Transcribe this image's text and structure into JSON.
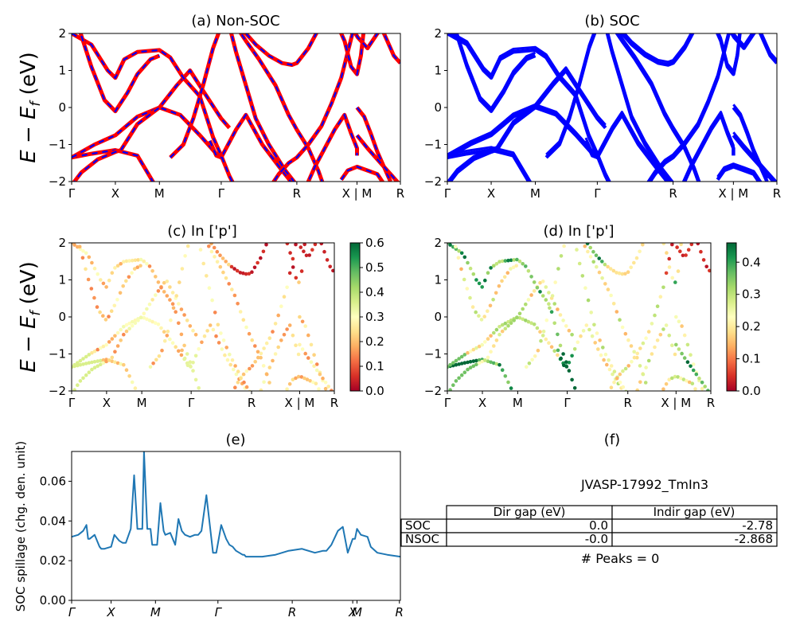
{
  "figure": {
    "row_ylabel": "E − Ef (eV)",
    "row_ylabel_main": "E − E",
    "row_ylabel_sub": "f",
    "row_ylabel_unit": " (eV)"
  },
  "chart_data": [
    {
      "id": "a",
      "type": "line",
      "title": "(a) Non-SOC",
      "ylim": [
        -2,
        2
      ],
      "yticks": [
        "2",
        "1",
        "0",
        "−1",
        "−2"
      ],
      "kpoints": [
        "Γ",
        "X",
        "M",
        "Γ",
        "R",
        "X | M",
        "R"
      ],
      "kpos": [
        0,
        0.133,
        0.267,
        0.455,
        0.685,
        0.868,
        1.0
      ],
      "series_colors": [
        "#ff0000",
        "#0000ff"
      ],
      "bands": [
        [
          [
            0,
            -1.35
          ],
          [
            0.06,
            -1.25
          ],
          [
            0.133,
            -1.15
          ],
          [
            0.2,
            -1.3
          ],
          [
            0.267,
            -2.3
          ]
        ],
        [
          [
            0,
            -1.35
          ],
          [
            0.07,
            -1.0
          ],
          [
            0.133,
            -0.75
          ],
          [
            0.2,
            -0.25
          ],
          [
            0.267,
            0.0
          ],
          [
            0.33,
            -0.2
          ],
          [
            0.39,
            -0.75
          ],
          [
            0.44,
            -1.25
          ],
          [
            0.455,
            -1.35
          ],
          [
            0.5,
            -0.6
          ],
          [
            0.53,
            -0.2
          ],
          [
            0.58,
            -1.0
          ],
          [
            0.64,
            -1.7
          ],
          [
            0.685,
            -2.2
          ]
        ],
        [
          [
            0.0,
            -2.1
          ],
          [
            0.03,
            -1.75
          ],
          [
            0.08,
            -1.4
          ],
          [
            0.133,
            -1.2
          ],
          [
            0.15,
            -1.15
          ],
          [
            0.2,
            -0.45
          ],
          [
            0.267,
            0.0
          ],
          [
            0.32,
            0.6
          ],
          [
            0.36,
            1.0
          ],
          [
            0.4,
            0.45
          ],
          [
            0.455,
            -0.3
          ],
          [
            0.48,
            -0.55
          ]
        ],
        [
          [
            0,
            2.0
          ],
          [
            0.06,
            1.7
          ],
          [
            0.11,
            1.0
          ],
          [
            0.133,
            0.8
          ],
          [
            0.16,
            1.3
          ],
          [
            0.2,
            1.5
          ],
          [
            0.267,
            1.55
          ],
          [
            0.3,
            1.35
          ],
          [
            0.34,
            0.8
          ],
          [
            0.39,
            0.3
          ],
          [
            0.43,
            -0.8
          ],
          [
            0.455,
            -1.3
          ],
          [
            0.48,
            -1.85
          ],
          [
            0.5,
            -2.2
          ]
        ],
        [
          [
            0.02,
            2.2
          ],
          [
            0.06,
            1.1
          ],
          [
            0.1,
            0.2
          ],
          [
            0.133,
            -0.1
          ],
          [
            0.17,
            0.4
          ],
          [
            0.2,
            0.9
          ],
          [
            0.24,
            1.3
          ],
          [
            0.267,
            1.4
          ]
        ],
        [
          [
            0.3,
            -1.35
          ],
          [
            0.34,
            -1.0
          ],
          [
            0.37,
            -0.3
          ],
          [
            0.4,
            0.6
          ],
          [
            0.43,
            1.6
          ],
          [
            0.455,
            2.2
          ]
        ],
        [
          [
            0.42,
            -0.9
          ],
          [
            0.44,
            -1.3
          ],
          [
            0.455,
            -1.35
          ]
        ],
        [
          [
            0.48,
            2.2
          ],
          [
            0.5,
            1.5
          ],
          [
            0.53,
            0.6
          ],
          [
            0.56,
            -0.3
          ],
          [
            0.6,
            -1.0
          ],
          [
            0.65,
            -1.7
          ],
          [
            0.685,
            -2.1
          ]
        ],
        [
          [
            0.5,
            2.2
          ],
          [
            0.53,
            1.8
          ],
          [
            0.57,
            1.3
          ],
          [
            0.62,
            0.6
          ],
          [
            0.66,
            -0.2
          ],
          [
            0.685,
            -0.6
          ],
          [
            0.72,
            -1.1
          ],
          [
            0.75,
            -1.7
          ],
          [
            0.77,
            -2.2
          ]
        ],
        [
          [
            0.51,
            2.2
          ],
          [
            0.53,
            2.0
          ],
          [
            0.56,
            1.7
          ],
          [
            0.6,
            1.4
          ],
          [
            0.64,
            1.2
          ],
          [
            0.67,
            1.15
          ],
          [
            0.685,
            1.2
          ],
          [
            0.72,
            1.6
          ],
          [
            0.75,
            2.1
          ]
        ],
        [
          [
            0.6,
            -2.2
          ],
          [
            0.63,
            -1.8
          ],
          [
            0.66,
            -1.5
          ],
          [
            0.685,
            -1.35
          ],
          [
            0.72,
            -1.0
          ],
          [
            0.76,
            -0.5
          ],
          [
            0.79,
            0.1
          ],
          [
            0.82,
            0.8
          ],
          [
            0.84,
            1.5
          ],
          [
            0.86,
            2.2
          ]
        ],
        [
          [
            0.71,
            -2.2
          ],
          [
            0.74,
            -1.6
          ],
          [
            0.77,
            -1.1
          ],
          [
            0.8,
            -0.6
          ],
          [
            0.83,
            -0.2
          ],
          [
            0.85,
            -0.7
          ],
          [
            0.868,
            -1.1
          ],
          [
            0.868,
            -1.3
          ]
        ],
        [
          [
            0.81,
            2.2
          ],
          [
            0.83,
            1.8
          ],
          [
            0.85,
            1.1
          ],
          [
            0.868,
            0.9
          ],
          [
            0.88,
            1.4
          ],
          [
            0.89,
            2.2
          ]
        ],
        [
          [
            0.868,
            0.0
          ],
          [
            0.89,
            -0.25
          ],
          [
            0.91,
            -0.7
          ],
          [
            0.93,
            -1.2
          ],
          [
            0.95,
            -1.6
          ],
          [
            0.97,
            -2.0
          ]
        ],
        [
          [
            0.82,
            -1.95
          ],
          [
            0.84,
            -1.7
          ],
          [
            0.868,
            -1.6
          ],
          [
            0.9,
            -1.7
          ],
          [
            0.93,
            -1.8
          ],
          [
            0.96,
            -2.2
          ]
        ],
        [
          [
            0.868,
            -0.75
          ],
          [
            0.9,
            -1.1
          ],
          [
            0.94,
            -1.5
          ],
          [
            0.97,
            -1.8
          ],
          [
            1.0,
            -2.1
          ]
        ],
        [
          [
            0.85,
            2.2
          ],
          [
            0.87,
            1.9
          ],
          [
            0.9,
            1.6
          ],
          [
            0.93,
            2.0
          ],
          [
            0.95,
            2.2
          ]
        ],
        [
          [
            0.94,
            2.2
          ],
          [
            0.96,
            1.8
          ],
          [
            0.98,
            1.4
          ],
          [
            1.0,
            1.2
          ]
        ]
      ]
    },
    {
      "id": "b",
      "type": "line",
      "title": "(b) SOC",
      "ylim": [
        -2,
        2
      ],
      "yticks": [
        "2",
        "1",
        "0",
        "−1",
        "−2"
      ],
      "kpoints": [
        "Γ",
        "X",
        "M",
        "Γ",
        "R",
        "X | M",
        "R"
      ],
      "kpos": [
        0,
        0.133,
        0.267,
        0.455,
        0.685,
        0.868,
        1.0
      ],
      "series_colors": [
        "#0000ff"
      ]
    },
    {
      "id": "c",
      "type": "scatter",
      "title": "(c)  In ['p']",
      "ylim": [
        -2,
        2
      ],
      "yticks": [
        "2",
        "1",
        "0",
        "−1",
        "−2"
      ],
      "kpoints": [
        "Γ",
        "X",
        "M",
        "Γ",
        "R",
        "X | M",
        "R"
      ],
      "colorbar": {
        "min": 0.0,
        "max": 0.6,
        "ticks": [
          "0.0",
          "0.1",
          "0.2",
          "0.3",
          "0.4",
          "0.5",
          "0.6"
        ]
      }
    },
    {
      "id": "d",
      "type": "scatter",
      "title": "(d) In ['p']",
      "ylim": [
        -2,
        2
      ],
      "yticks": [
        "2",
        "1",
        "0",
        "−1",
        "−2"
      ],
      "kpoints": [
        "Γ",
        "X",
        "M",
        "Γ",
        "R",
        "X | M",
        "R"
      ],
      "colorbar": {
        "min": 0.0,
        "max": 0.46,
        "ticks": [
          "0.0",
          "0.1",
          "0.2",
          "0.3",
          "0.4"
        ]
      }
    },
    {
      "id": "e",
      "type": "line",
      "title": "(e)",
      "ylabel": "SOC spillage (chg. den. unit)",
      "ylim": [
        0.0,
        0.075
      ],
      "yticks": [
        "0.06",
        "0.04",
        "0.02",
        "0.00"
      ],
      "kpoints": [
        "Γ",
        "X",
        "M",
        "Γ",
        "R",
        "X",
        "M",
        "R"
      ],
      "color": "#1f77b4",
      "x": [
        0.0,
        0.02,
        0.035,
        0.045,
        0.05,
        0.055,
        0.07,
        0.085,
        0.09,
        0.1,
        0.12,
        0.13,
        0.145,
        0.155,
        0.165,
        0.18,
        0.19,
        0.2,
        0.215,
        0.22,
        0.23,
        0.24,
        0.245,
        0.26,
        0.27,
        0.28,
        0.285,
        0.3,
        0.305,
        0.315,
        0.325,
        0.335,
        0.345,
        0.36,
        0.375,
        0.385,
        0.395,
        0.41,
        0.43,
        0.44,
        0.455,
        0.47,
        0.48,
        0.49,
        0.5,
        0.5,
        0.52,
        0.525,
        0.53,
        0.535,
        0.545,
        0.555,
        0.58,
        0.62,
        0.66,
        0.7,
        0.74,
        0.765,
        0.775,
        0.79,
        0.81,
        0.825,
        0.84,
        0.855,
        0.862,
        0.868,
        0.88,
        0.9,
        0.91,
        0.93,
        0.96,
        1.0
      ],
      "values": [
        0.032,
        0.033,
        0.035,
        0.038,
        0.031,
        0.031,
        0.033,
        0.027,
        0.026,
        0.026,
        0.027,
        0.033,
        0.03,
        0.029,
        0.029,
        0.036,
        0.063,
        0.036,
        0.036,
        0.075,
        0.036,
        0.036,
        0.028,
        0.028,
        0.049,
        0.035,
        0.033,
        0.034,
        0.032,
        0.028,
        0.041,
        0.035,
        0.033,
        0.032,
        0.033,
        0.033,
        0.035,
        0.053,
        0.024,
        0.024,
        0.038,
        0.031,
        0.028,
        0.027,
        0.025,
        0.025,
        0.023,
        0.023,
        0.022,
        0.022,
        0.022,
        0.022,
        0.022,
        0.023,
        0.025,
        0.026,
        0.024,
        0.025,
        0.025,
        0.028,
        0.035,
        0.037,
        0.024,
        0.031,
        0.031,
        0.036,
        0.033,
        0.032,
        0.027,
        0.024,
        0.023,
        0.022
      ]
    }
  ],
  "panel_f": {
    "title": "(f)",
    "jid": "JVASP-17992_TmIn3",
    "columns": [
      "Dir gap (eV)",
      "Indir gap (eV)"
    ],
    "rows": [
      {
        "label": "SOC",
        "dir": "0.0",
        "indir": "-2.78"
      },
      {
        "label": "NSOC",
        "dir": "-0.0",
        "indir": "-2.868"
      }
    ],
    "peaks": "# Peaks = 0"
  }
}
